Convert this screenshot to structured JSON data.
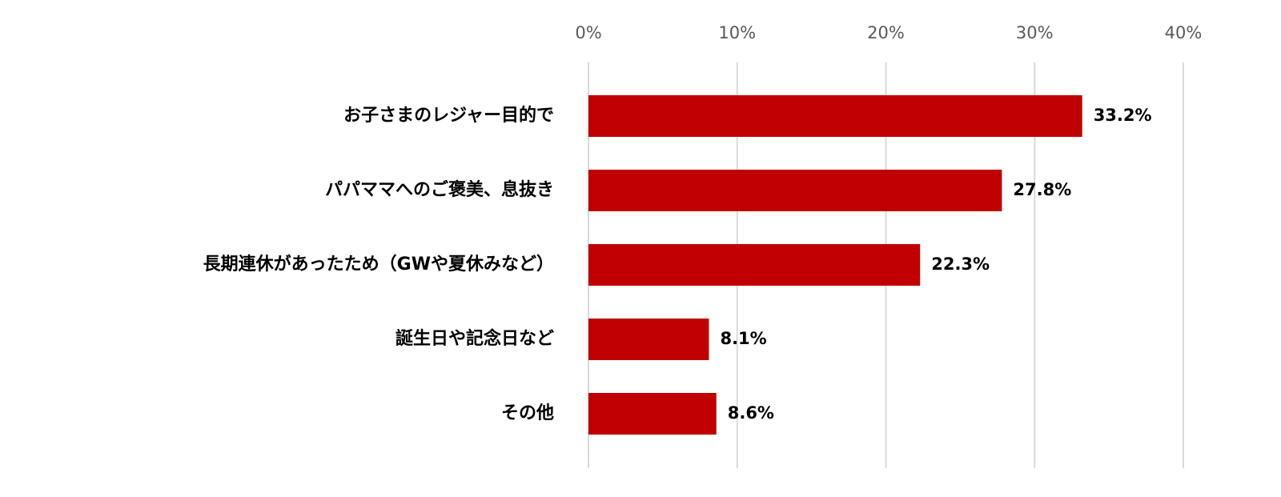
{
  "chart_data": {
    "type": "bar",
    "orientation": "horizontal",
    "categories": [
      "お子さまのレジャー目的で",
      "パパママへのご褒美、息抜き",
      "長期連休があったため（GWや夏休みなど）",
      "誕生日や記念日など",
      "その他"
    ],
    "values": [
      33.2,
      27.8,
      22.3,
      8.1,
      8.6
    ],
    "value_labels": [
      "33.2%",
      "27.8%",
      "22.3%",
      "8.1%",
      "8.6%"
    ],
    "x_ticks": [
      0,
      10,
      20,
      30,
      40
    ],
    "x_tick_labels": [
      "0%",
      "10%",
      "20%",
      "30%",
      "40%"
    ],
    "xlim": [
      0,
      40
    ],
    "x_axis_position": "top",
    "grid": true,
    "legend": false,
    "title": "",
    "xlabel": "",
    "ylabel": "",
    "colors": {
      "bar": "#C00000",
      "grid": "#D9D9D9",
      "tick_text": "#595959",
      "label_text": "#000000"
    }
  }
}
